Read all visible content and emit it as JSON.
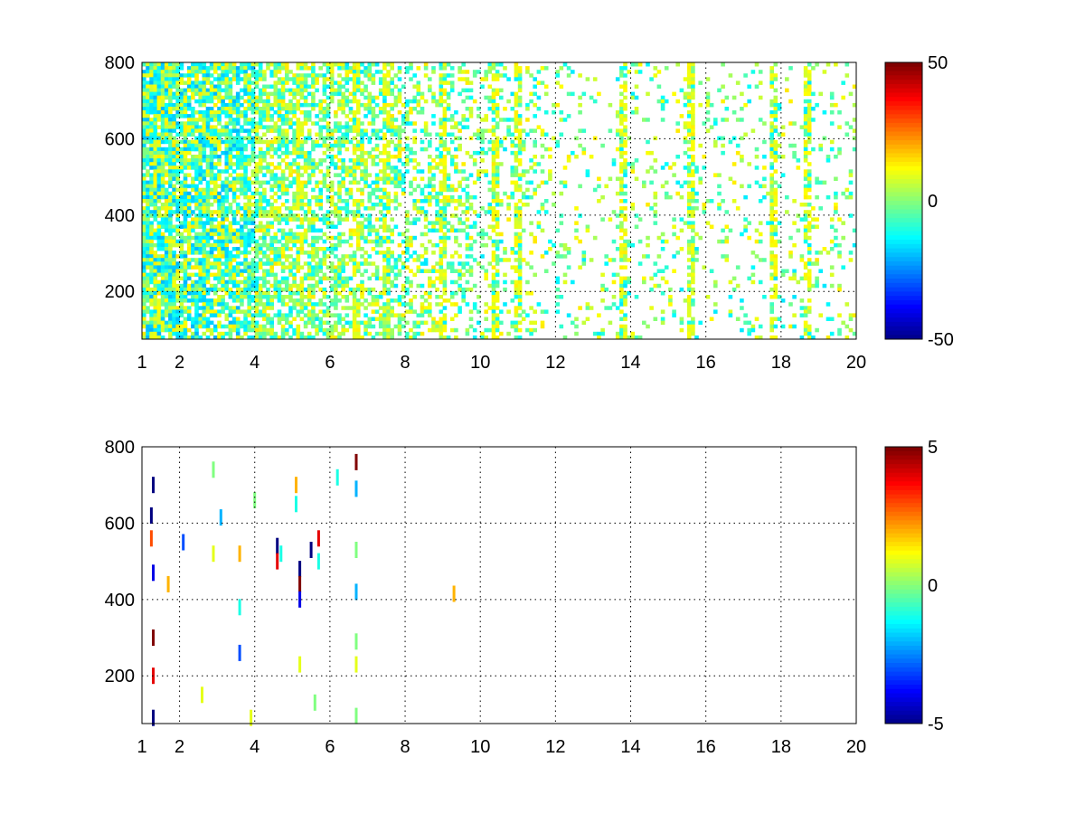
{
  "chart_data": [
    {
      "type": "heatmap",
      "title": "",
      "xlabel": "",
      "ylabel": "",
      "xlim": [
        1,
        20
      ],
      "ylim": [
        75,
        800
      ],
      "x_ticks": [
        1,
        2,
        4,
        6,
        8,
        10,
        12,
        14,
        16,
        18,
        20
      ],
      "y_ticks": [
        200,
        400,
        600,
        800
      ],
      "grid": true,
      "colormap": "jet",
      "colorbar": {
        "min": -50,
        "max": 50,
        "ticks": [
          50,
          0,
          -50
        ],
        "position": "right"
      },
      "description_of_values": "dense scattered cells with values mostly between -15 and 15; strong vertical bands near x = 1.4, 2.2, 3.0, 5.2, 6.7, 7.5, 9.0, 10.4, 11.0, 13.8, 15.6, 17.8, 18.7",
      "band_columns": [
        1.4,
        2.2,
        3.0,
        5.2,
        6.7,
        7.5,
        9.0,
        10.4,
        11.0,
        13.8,
        15.6,
        17.8,
        18.7
      ]
    },
    {
      "type": "heatmap",
      "title": "",
      "xlabel": "",
      "ylabel": "",
      "xlim": [
        1,
        20
      ],
      "ylim": [
        75,
        800
      ],
      "x_ticks": [
        1,
        2,
        4,
        6,
        8,
        10,
        12,
        14,
        16,
        18,
        20
      ],
      "y_ticks": [
        200,
        400,
        600,
        800
      ],
      "grid": true,
      "colormap": "jet",
      "colorbar": {
        "min": -5,
        "max": 5,
        "ticks": [
          5,
          0,
          -5
        ],
        "position": "right"
      },
      "sparse_points": [
        {
          "x": 1.25,
          "y": 620,
          "v": -5
        },
        {
          "x": 1.25,
          "y": 560,
          "v": 3
        },
        {
          "x": 1.3,
          "y": 700,
          "v": -5
        },
        {
          "x": 1.3,
          "y": 470,
          "v": -4
        },
        {
          "x": 1.3,
          "y": 300,
          "v": 5
        },
        {
          "x": 1.3,
          "y": 200,
          "v": 4
        },
        {
          "x": 1.3,
          "y": 90,
          "v": -5
        },
        {
          "x": 1.7,
          "y": 440,
          "v": 2
        },
        {
          "x": 2.1,
          "y": 550,
          "v": -3
        },
        {
          "x": 2.6,
          "y": 150,
          "v": 1
        },
        {
          "x": 2.9,
          "y": 740,
          "v": 0
        },
        {
          "x": 2.9,
          "y": 520,
          "v": 1
        },
        {
          "x": 3.1,
          "y": 615,
          "v": -2
        },
        {
          "x": 3.6,
          "y": 520,
          "v": 2
        },
        {
          "x": 3.6,
          "y": 380,
          "v": -1
        },
        {
          "x": 3.6,
          "y": 260,
          "v": -3
        },
        {
          "x": 3.9,
          "y": 90,
          "v": 1
        },
        {
          "x": 4.0,
          "y": 660,
          "v": 0
        },
        {
          "x": 4.6,
          "y": 540,
          "v": -5
        },
        {
          "x": 4.6,
          "y": 500,
          "v": 4
        },
        {
          "x": 4.7,
          "y": 520,
          "v": -1
        },
        {
          "x": 5.1,
          "y": 700,
          "v": 2
        },
        {
          "x": 5.1,
          "y": 650,
          "v": -1
        },
        {
          "x": 5.2,
          "y": 480,
          "v": -5
        },
        {
          "x": 5.2,
          "y": 440,
          "v": 5
        },
        {
          "x": 5.2,
          "y": 400,
          "v": -4
        },
        {
          "x": 5.2,
          "y": 230,
          "v": 1
        },
        {
          "x": 5.5,
          "y": 530,
          "v": -5
        },
        {
          "x": 5.7,
          "y": 560,
          "v": 4
        },
        {
          "x": 5.7,
          "y": 500,
          "v": -1
        },
        {
          "x": 5.6,
          "y": 130,
          "v": 0
        },
        {
          "x": 6.2,
          "y": 720,
          "v": -1
        },
        {
          "x": 6.7,
          "y": 760,
          "v": 5
        },
        {
          "x": 6.7,
          "y": 690,
          "v": -2
        },
        {
          "x": 6.7,
          "y": 530,
          "v": 0
        },
        {
          "x": 6.7,
          "y": 420,
          "v": -2
        },
        {
          "x": 6.7,
          "y": 290,
          "v": 0
        },
        {
          "x": 6.7,
          "y": 230,
          "v": 1
        },
        {
          "x": 6.7,
          "y": 95,
          "v": 0
        },
        {
          "x": 9.3,
          "y": 415,
          "v": 2
        }
      ]
    }
  ]
}
